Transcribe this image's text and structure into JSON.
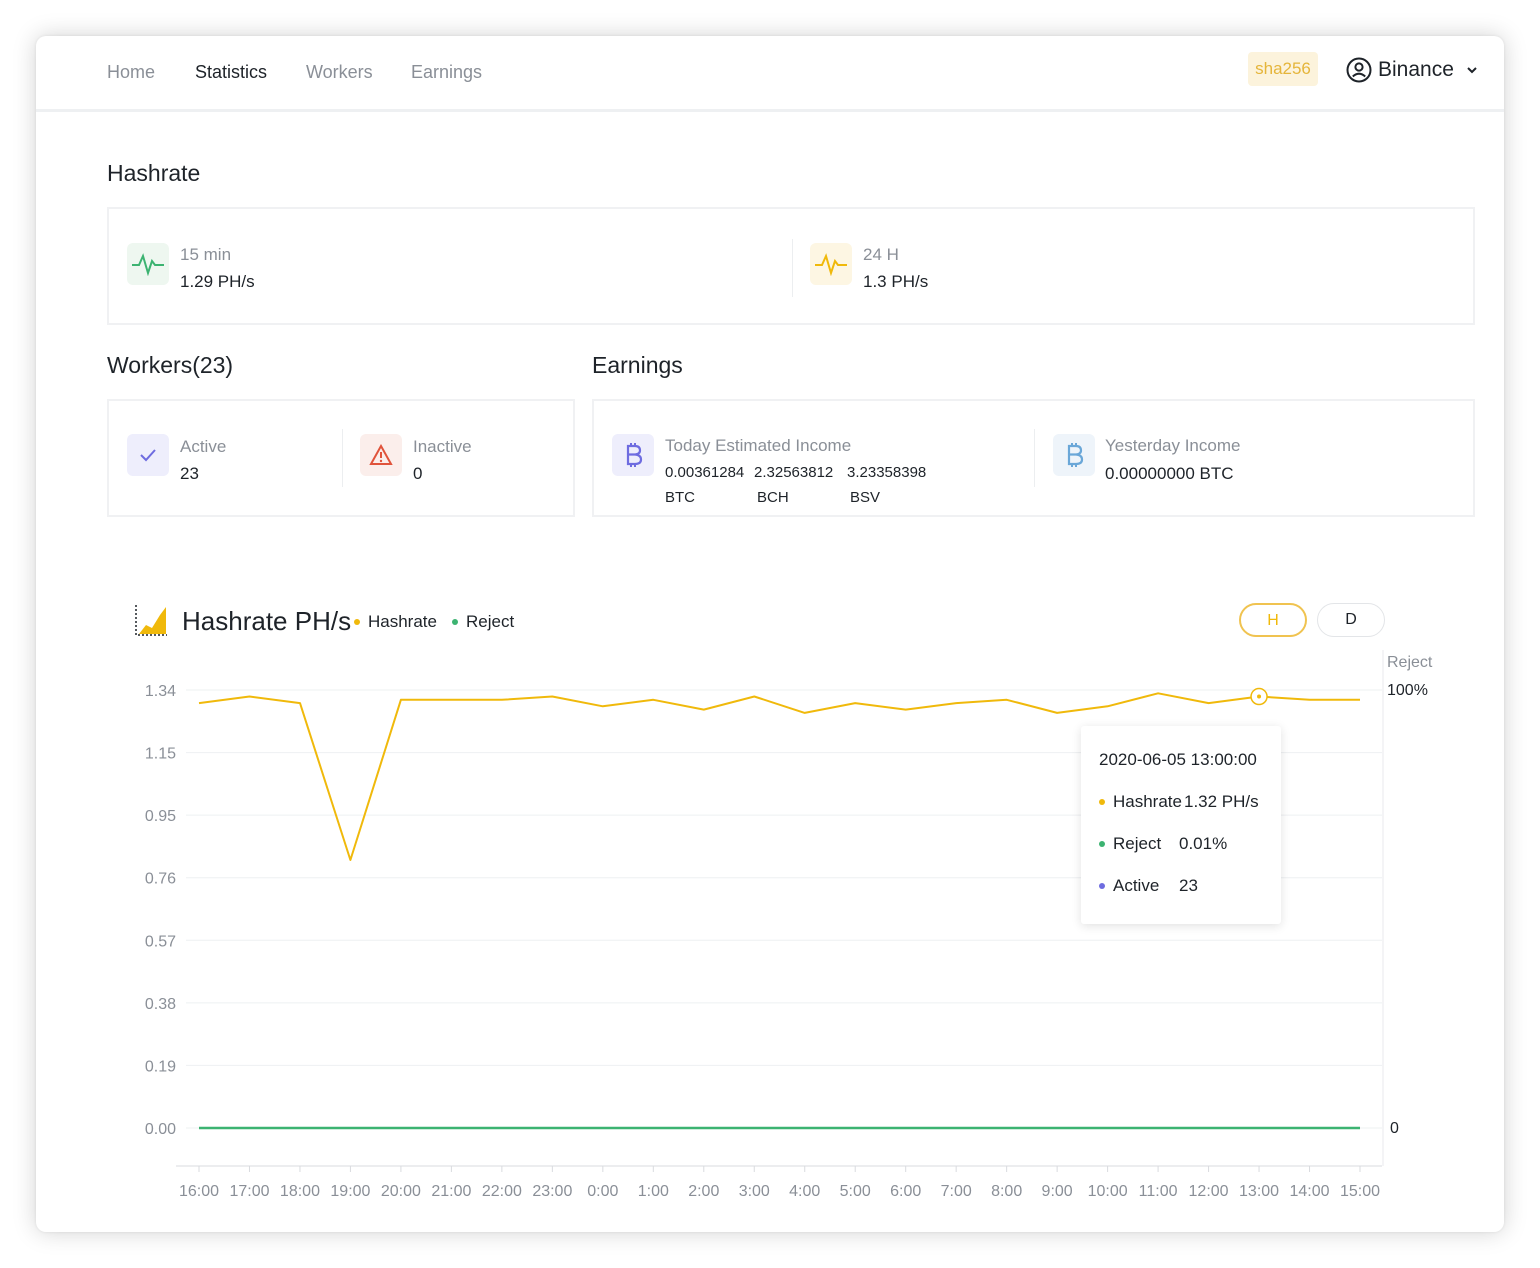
{
  "nav": {
    "items": [
      {
        "label": "Home",
        "active": false
      },
      {
        "label": "Statistics",
        "active": true
      },
      {
        "label": "Workers",
        "active": false
      },
      {
        "label": "Earnings",
        "active": false
      }
    ],
    "algo_badge": "sha256",
    "account": "Binance"
  },
  "hashrate": {
    "title": "Hashrate",
    "m15": {
      "label": "15 min",
      "value": "1.29 PH/s",
      "icon": "pulse-icon",
      "color": "#3cb371"
    },
    "h24": {
      "label": "24 H",
      "value": "1.3 PH/s",
      "icon": "pulse-icon",
      "color": "#f0b90b"
    }
  },
  "workers": {
    "title": "Workers(23)",
    "active": {
      "label": "Active",
      "value": "23",
      "icon": "check-icon",
      "color": "#6e6ce0"
    },
    "inactive": {
      "label": "Inactive",
      "value": "0",
      "icon": "warning-icon",
      "color": "#e0533b"
    }
  },
  "earnings": {
    "title": "Earnings",
    "today": {
      "label": "Today Estimated Income",
      "amounts": [
        {
          "value": "0.00361284",
          "coin": "BTC"
        },
        {
          "value": "2.32563812",
          "coin": "BCH"
        },
        {
          "value": "3.23358398",
          "coin": "BSV"
        }
      ],
      "icon": "bitcoin-icon",
      "color": "#6e6ce0"
    },
    "yesterday": {
      "label": "Yesterday Income",
      "value": "0.00000000 BTC",
      "icon": "bitcoin-icon",
      "color": "#6aa7d8"
    }
  },
  "chart": {
    "title": "Hashrate PH/s",
    "legend": [
      {
        "name": "Hashrate",
        "color": "#f0b90b"
      },
      {
        "name": "Reject",
        "color": "#3cb371"
      }
    ],
    "range_buttons": [
      {
        "label": "H",
        "selected": true
      },
      {
        "label": "D",
        "selected": false
      }
    ],
    "right_axis_title": "Reject",
    "right_axis_top": "100%",
    "right_axis_bottom": "0",
    "tooltip": {
      "time": "2020-06-05  13:00:00",
      "rows": [
        {
          "name": "Hashrate",
          "value": "1.32 PH/s",
          "color": "#f0b90b"
        },
        {
          "name": "Reject",
          "value": "0.01%",
          "color": "#3cb371"
        },
        {
          "name": "Active",
          "value": "23",
          "color": "#6e6ce0"
        }
      ]
    }
  },
  "chart_data": {
    "type": "line",
    "x": [
      "16:00",
      "17:00",
      "18:00",
      "19:00",
      "20:00",
      "21:00",
      "22:00",
      "23:00",
      "0:00",
      "1:00",
      "2:00",
      "3:00",
      "4:00",
      "5:00",
      "6:00",
      "7:00",
      "8:00",
      "9:00",
      "10:00",
      "11:00",
      "12:00",
      "13:00",
      "14:00",
      "15:00"
    ],
    "y_ticks": [
      "1.34",
      "1.15",
      "0.95",
      "0.76",
      "0.57",
      "0.38",
      "0.19",
      "0.00"
    ],
    "ylim": [
      0,
      1.34
    ],
    "y2lim": [
      0,
      100
    ],
    "series": [
      {
        "name": "Hashrate",
        "axis": "left",
        "color": "#f0b90b",
        "values": [
          1.3,
          1.32,
          1.3,
          0.82,
          1.31,
          1.31,
          1.31,
          1.32,
          1.29,
          1.31,
          1.28,
          1.32,
          1.27,
          1.3,
          1.28,
          1.3,
          1.31,
          1.27,
          1.29,
          1.33,
          1.3,
          1.32,
          1.31,
          1.31
        ]
      },
      {
        "name": "Reject",
        "axis": "right",
        "color": "#3cb371",
        "values": [
          0.01,
          0.01,
          0.01,
          0.01,
          0.01,
          0.01,
          0.01,
          0.01,
          0.01,
          0.01,
          0.01,
          0.01,
          0.01,
          0.01,
          0.01,
          0.01,
          0.01,
          0.01,
          0.01,
          0.01,
          0.01,
          0.01,
          0.01,
          0.01
        ]
      }
    ],
    "highlight_index": 21,
    "grid": true
  }
}
